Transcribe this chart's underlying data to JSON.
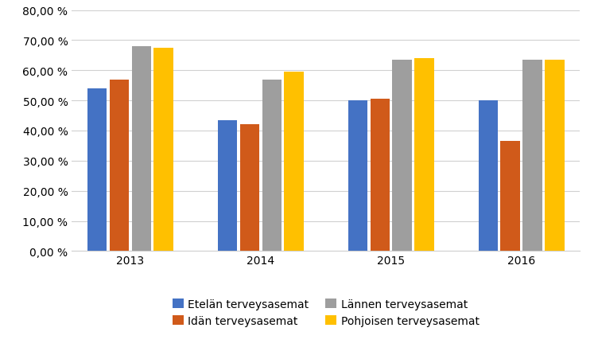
{
  "years": [
    "2013",
    "2014",
    "2015",
    "2016"
  ],
  "series": {
    "Etelän terveysasemat": [
      0.54,
      0.435,
      0.5,
      0.5
    ],
    "Idän terveysasemat": [
      0.57,
      0.42,
      0.505,
      0.365
    ],
    "Lännen terveysasemat": [
      0.68,
      0.57,
      0.635,
      0.635
    ],
    "Pohjoisen terveysasemat": [
      0.675,
      0.595,
      0.64,
      0.635
    ]
  },
  "colors": {
    "Etelän terveysasemat": "#4472C4",
    "Idän terveysasemat": "#D05A1A",
    "Lännen terveysasemat": "#9E9E9E",
    "Pohjoisen terveysasemat": "#FFC000"
  },
  "ylim": [
    0,
    0.8
  ],
  "yticks": [
    0.0,
    0.1,
    0.2,
    0.3,
    0.4,
    0.5,
    0.6,
    0.7,
    0.8
  ],
  "background_color": "#FFFFFF",
  "grid_color": "#D0D0D0",
  "bar_width": 0.15,
  "legend_ncol": 2,
  "tick_label_fontsize": 10,
  "legend_fontsize": 10
}
